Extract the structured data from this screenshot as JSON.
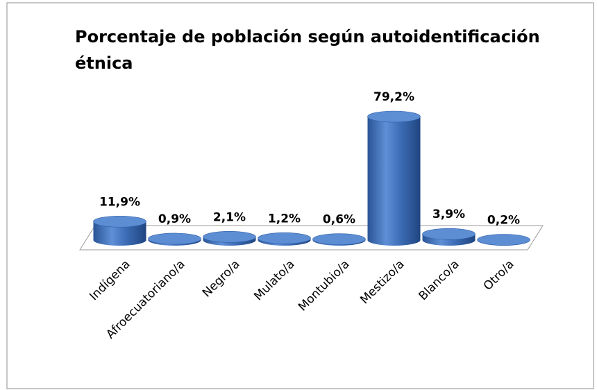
{
  "chart_data": {
    "type": "bar",
    "title": "Porcentaje de población según autoidentificación étnica",
    "categories": [
      "Indígena",
      "Afroecuatoriano/a",
      "Negro/a",
      "Mulato/a",
      "Montubio/a",
      "Mestizo/a",
      "Blanco/a",
      "Otro/a"
    ],
    "values": [
      11.9,
      0.9,
      2.1,
      1.2,
      0.6,
      79.2,
      3.9,
      0.2
    ],
    "value_labels": [
      "11,9%",
      "0,9%",
      "2,1%",
      "1,2%",
      "0,6%",
      "79,2%",
      "3,9%",
      "0,2%"
    ],
    "color": "#3a6db5"
  }
}
